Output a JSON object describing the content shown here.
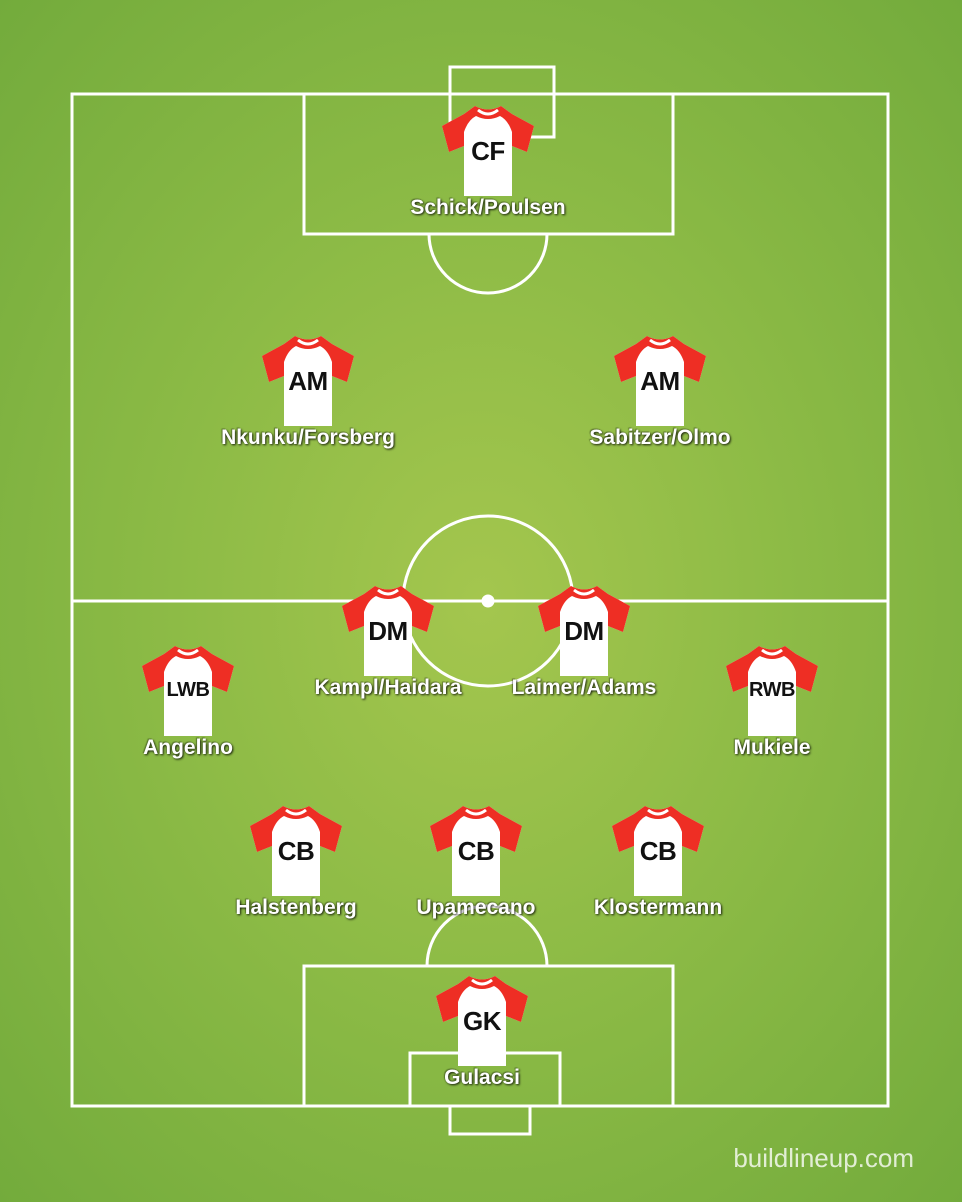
{
  "watermark": "buildlineup.com",
  "colors": {
    "sleeve": "#ee2e24",
    "body": "#ffffff",
    "pitch": "#8dbb46",
    "lines": "#ffffff"
  },
  "players": [
    {
      "id": "cf",
      "position": "CF",
      "name": "Schick/Poulsen"
    },
    {
      "id": "am-left",
      "position": "AM",
      "name": "Nkunku/Forsberg"
    },
    {
      "id": "am-right",
      "position": "AM",
      "name": "Sabitzer/Olmo"
    },
    {
      "id": "dm-left",
      "position": "DM",
      "name": "Kampl/Haidara"
    },
    {
      "id": "dm-right",
      "position": "DM",
      "name": "Laimer/Adams"
    },
    {
      "id": "lwb",
      "position": "LWB",
      "name": "Angelino"
    },
    {
      "id": "rwb",
      "position": "RWB",
      "name": "Mukiele"
    },
    {
      "id": "cb-left",
      "position": "CB",
      "name": "Halstenberg"
    },
    {
      "id": "cb-center",
      "position": "CB",
      "name": "Upamecano"
    },
    {
      "id": "cb-right",
      "position": "CB",
      "name": "Klostermann"
    },
    {
      "id": "gk",
      "position": "GK",
      "name": "Gulacsi"
    }
  ]
}
